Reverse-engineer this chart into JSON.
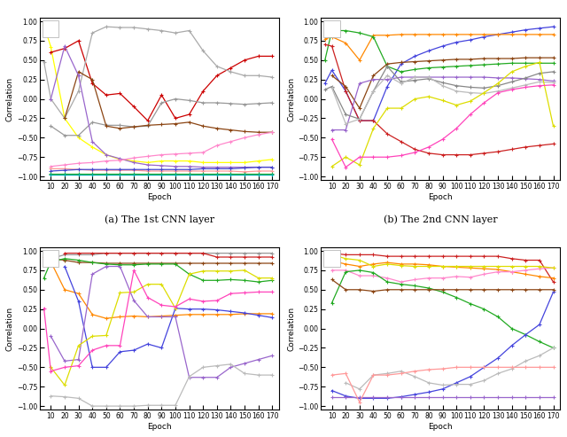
{
  "epochs": [
    5,
    10,
    20,
    30,
    40,
    50,
    60,
    70,
    80,
    90,
    100,
    110,
    120,
    130,
    140,
    150,
    160,
    170
  ],
  "subplot_titles": [
    "(a) The 1st CNN layer",
    "(b) The 2nd CNN layer",
    "(c) The 1st FC layer",
    "(d) The 2nd FC layer"
  ],
  "subplot_a_lines": [
    {
      "color": "#ffff00",
      "data": [
        0.95,
        0.67,
        -0.25,
        -0.5,
        -0.62,
        -0.72,
        -0.78,
        -0.8,
        -0.82,
        -0.8,
        -0.8,
        -0.8,
        -0.82,
        -0.82,
        -0.82,
        -0.82,
        -0.8,
        -0.78
      ]
    },
    {
      "color": "#cc0000",
      "data": [
        null,
        0.6,
        0.65,
        0.75,
        0.2,
        0.05,
        0.07,
        -0.1,
        -0.28,
        0.05,
        -0.25,
        -0.2,
        0.1,
        0.3,
        0.4,
        0.5,
        0.55,
        0.55
      ]
    },
    {
      "color": "#aaaaaa",
      "data": [
        0.48,
        0.0,
        -0.25,
        0.1,
        0.85,
        0.93,
        0.92,
        0.92,
        0.9,
        0.88,
        0.85,
        0.88,
        0.62,
        0.42,
        0.35,
        0.3,
        0.3,
        0.28
      ]
    },
    {
      "color": "#999999",
      "data": [
        null,
        -0.35,
        -0.47,
        -0.47,
        -0.3,
        -0.34,
        -0.34,
        -0.36,
        -0.35,
        -0.05,
        0.0,
        -0.02,
        -0.05,
        -0.05,
        -0.06,
        -0.07,
        -0.06,
        -0.05
      ]
    },
    {
      "color": "#8B4513",
      "data": [
        null,
        null,
        -0.25,
        0.35,
        0.25,
        -0.35,
        -0.38,
        -0.36,
        -0.34,
        -0.33,
        -0.32,
        -0.3,
        -0.35,
        -0.38,
        -0.4,
        -0.42,
        -0.43,
        -0.43
      ]
    },
    {
      "color": "#9966cc",
      "data": [
        null,
        0.0,
        0.68,
        0.3,
        -0.55,
        -0.72,
        -0.77,
        -0.82,
        -0.85,
        -0.86,
        -0.87,
        -0.87,
        -0.88,
        -0.88,
        -0.88,
        -0.88,
        -0.88,
        -0.88
      ]
    },
    {
      "color": "#ff88cc",
      "data": [
        null,
        -0.87,
        -0.85,
        -0.83,
        -0.82,
        -0.8,
        -0.79,
        -0.76,
        -0.74,
        -0.72,
        -0.71,
        -0.7,
        -0.69,
        -0.6,
        -0.55,
        -0.5,
        -0.46,
        -0.43
      ]
    },
    {
      "color": "#ff9999",
      "data": [
        null,
        -0.9,
        -0.9,
        -0.91,
        -0.92,
        -0.92,
        -0.92,
        -0.92,
        -0.93,
        -0.93,
        -0.93,
        -0.93,
        -0.93,
        -0.93,
        -0.93,
        -0.94,
        -0.93,
        -0.93
      ]
    },
    {
      "color": "#4444cc",
      "data": [
        null,
        -0.93,
        -0.92,
        -0.91,
        -0.91,
        -0.91,
        -0.91,
        -0.91,
        -0.91,
        -0.91,
        -0.91,
        -0.91,
        -0.9,
        -0.9,
        -0.9,
        -0.89,
        -0.88,
        -0.88
      ]
    },
    {
      "color": "#22aa22",
      "data": [
        null,
        -0.97,
        -0.97,
        -0.97,
        -0.97,
        -0.97,
        -0.97,
        -0.97,
        -0.97,
        -0.97,
        -0.97,
        -0.97,
        -0.97,
        -0.97,
        -0.97,
        -0.97,
        -0.97,
        -0.97
      ]
    },
    {
      "color": "#00aaaa",
      "data": [
        null,
        -0.98,
        -0.98,
        -0.98,
        -0.98,
        -0.98,
        -0.98,
        -0.98,
        -0.98,
        -0.98,
        -0.98,
        -0.98,
        -0.98,
        -0.98,
        -0.98,
        -0.98,
        -0.98,
        -0.98
      ]
    }
  ],
  "subplot_b_lines": [
    {
      "color": "#4444dd",
      "data": [
        0.2,
        0.37,
        0.1,
        -0.28,
        -0.28,
        0.16,
        0.45,
        0.55,
        0.62,
        0.68,
        0.73,
        0.76,
        0.8,
        0.83,
        0.86,
        0.89,
        0.91,
        0.93
      ]
    },
    {
      "color": "#ff8800",
      "data": [
        0.77,
        0.8,
        0.72,
        0.5,
        0.82,
        0.82,
        0.83,
        0.83,
        0.83,
        0.83,
        0.83,
        0.83,
        0.83,
        0.83,
        0.83,
        0.83,
        0.83,
        0.83
      ]
    },
    {
      "color": "#22aa22",
      "data": [
        0.5,
        0.88,
        0.88,
        0.85,
        0.8,
        0.42,
        0.35,
        0.38,
        0.4,
        0.41,
        0.42,
        0.43,
        0.44,
        0.45,
        0.46,
        0.46,
        0.46,
        0.46
      ]
    },
    {
      "color": "#cc2222",
      "data": [
        0.7,
        0.68,
        0.1,
        -0.28,
        -0.28,
        -0.45,
        -0.55,
        -0.65,
        -0.7,
        -0.72,
        -0.72,
        -0.72,
        -0.7,
        -0.68,
        -0.65,
        -0.62,
        -0.6,
        -0.58
      ]
    },
    {
      "color": "#8B4513",
      "data": [
        null,
        0.3,
        0.16,
        -0.12,
        0.3,
        0.45,
        0.47,
        0.48,
        0.49,
        0.5,
        0.51,
        0.51,
        0.52,
        0.52,
        0.52,
        0.53,
        0.53,
        0.53
      ]
    },
    {
      "color": "#9966cc",
      "data": [
        null,
        -0.4,
        -0.4,
        0.2,
        0.25,
        0.25,
        0.28,
        0.28,
        0.28,
        0.28,
        0.28,
        0.28,
        0.28,
        0.27,
        0.27,
        0.26,
        0.25,
        0.23
      ]
    },
    {
      "color": "#888888",
      "data": [
        0.12,
        0.16,
        -0.2,
        -0.26,
        0.1,
        0.42,
        0.22,
        0.24,
        0.26,
        0.21,
        0.17,
        0.15,
        0.14,
        0.17,
        0.22,
        0.27,
        0.33,
        0.35
      ]
    },
    {
      "color": "#bbbbbb",
      "data": [
        null,
        0.14,
        -0.32,
        -0.26,
        0.1,
        0.3,
        0.2,
        0.28,
        0.28,
        0.17,
        0.1,
        0.08,
        0.07,
        0.1,
        0.14,
        0.18,
        0.22,
        0.21
      ]
    },
    {
      "color": "#dddd00",
      "data": [
        null,
        -0.87,
        -0.75,
        -0.85,
        -0.38,
        -0.12,
        -0.12,
        0.0,
        0.03,
        -0.02,
        -0.08,
        -0.03,
        0.08,
        0.2,
        0.35,
        0.42,
        0.47,
        -0.35
      ]
    },
    {
      "color": "#ff44bb",
      "data": [
        null,
        -0.52,
        -0.88,
        -0.75,
        -0.75,
        -0.75,
        -0.73,
        -0.69,
        -0.62,
        -0.52,
        -0.38,
        -0.2,
        -0.05,
        0.08,
        0.12,
        0.15,
        0.17,
        0.18
      ]
    }
  ],
  "subplot_c_lines": [
    {
      "color": "#999999",
      "data": [
        0.9,
        0.9,
        0.95,
        0.95,
        0.95,
        0.97,
        0.97,
        0.97,
        0.97,
        0.97,
        0.97,
        0.97,
        0.97,
        0.97,
        0.97,
        0.97,
        0.97,
        0.97
      ]
    },
    {
      "color": "#cc2222",
      "data": [
        null,
        null,
        0.97,
        0.97,
        0.97,
        0.97,
        0.97,
        0.97,
        0.97,
        0.97,
        0.97,
        0.97,
        0.97,
        0.92,
        0.92,
        0.92,
        0.92,
        0.92
      ]
    },
    {
      "color": "#8B4513",
      "data": [
        0.92,
        0.9,
        0.88,
        0.85,
        0.85,
        0.84,
        0.84,
        0.84,
        0.84,
        0.84,
        0.84,
        0.84,
        0.84,
        0.84,
        0.84,
        0.84,
        0.84,
        0.84
      ]
    },
    {
      "color": "#22aa22",
      "data": [
        0.65,
        0.86,
        0.9,
        0.88,
        0.85,
        0.83,
        0.82,
        0.82,
        0.83,
        0.83,
        0.83,
        0.7,
        0.62,
        0.62,
        0.63,
        0.62,
        0.6,
        0.62
      ]
    },
    {
      "color": "#ff8800",
      "data": [
        null,
        0.86,
        0.5,
        0.45,
        0.18,
        0.13,
        0.15,
        0.16,
        0.15,
        0.16,
        0.17,
        0.18,
        0.18,
        0.18,
        0.18,
        0.19,
        0.19,
        0.19
      ]
    },
    {
      "color": "#4444dd",
      "data": [
        null,
        null,
        0.8,
        0.35,
        -0.5,
        -0.5,
        -0.3,
        -0.28,
        -0.2,
        -0.25,
        0.26,
        0.25,
        0.25,
        0.24,
        0.22,
        0.2,
        0.17,
        0.14
      ]
    },
    {
      "color": "#9966cc",
      "data": [
        null,
        -0.1,
        -0.42,
        -0.4,
        0.7,
        0.8,
        0.8,
        0.36,
        0.15,
        0.15,
        0.15,
        -0.63,
        -0.63,
        -0.63,
        -0.5,
        -0.45,
        -0.4,
        -0.35
      ]
    },
    {
      "color": "#dddd00",
      "data": [
        null,
        -0.5,
        -0.73,
        -0.22,
        -0.1,
        -0.09,
        0.46,
        0.47,
        0.57,
        0.57,
        0.26,
        0.7,
        0.74,
        0.74,
        0.74,
        0.75,
        0.65,
        0.65
      ]
    },
    {
      "color": "#ff44bb",
      "data": [
        0.26,
        -0.55,
        -0.5,
        -0.48,
        -0.28,
        -0.22,
        -0.22,
        0.75,
        0.4,
        0.3,
        0.28,
        0.38,
        0.35,
        0.36,
        0.45,
        0.46,
        0.47,
        0.47
      ]
    },
    {
      "color": "#bbbbbb",
      "data": [
        null,
        -0.87,
        -0.88,
        -0.9,
        -1.0,
        -1.0,
        -1.0,
        -1.0,
        -0.99,
        -0.99,
        -0.99,
        -0.62,
        -0.5,
        -0.48,
        -0.46,
        -0.58,
        -0.6,
        -0.6
      ]
    }
  ],
  "subplot_d_lines": [
    {
      "color": "#cc2222",
      "data": [
        null,
        0.97,
        0.95,
        0.95,
        0.95,
        0.93,
        0.93,
        0.93,
        0.93,
        0.93,
        0.93,
        0.93,
        0.93,
        0.93,
        0.9,
        0.88,
        0.88,
        0.6
      ]
    },
    {
      "color": "#ff8800",
      "data": [
        null,
        0.87,
        0.83,
        0.8,
        0.83,
        0.85,
        0.83,
        0.83,
        0.82,
        0.8,
        0.79,
        0.78,
        0.77,
        0.76,
        0.73,
        0.7,
        0.67,
        0.65
      ]
    },
    {
      "color": "#ff88cc",
      "data": [
        null,
        0.75,
        0.75,
        0.68,
        0.68,
        0.65,
        0.6,
        0.63,
        0.65,
        0.65,
        0.67,
        0.66,
        0.7,
        0.73,
        0.73,
        0.75,
        0.77,
        0.78
      ]
    },
    {
      "color": "#dddd00",
      "data": [
        null,
        0.95,
        0.9,
        0.88,
        0.8,
        0.83,
        0.81,
        0.8,
        0.8,
        0.8,
        0.8,
        0.8,
        0.8,
        0.8,
        0.8,
        0.8,
        0.8,
        0.78
      ]
    },
    {
      "color": "#22aa22",
      "data": [
        null,
        0.33,
        0.73,
        0.75,
        0.72,
        0.6,
        0.57,
        0.55,
        0.52,
        0.47,
        0.4,
        0.32,
        0.25,
        0.15,
        0.0,
        -0.08,
        -0.17,
        -0.25
      ]
    },
    {
      "color": "#4444dd",
      "data": [
        null,
        -0.8,
        -0.87,
        -0.9,
        -0.9,
        -0.9,
        -0.88,
        -0.85,
        -0.82,
        -0.78,
        -0.7,
        -0.62,
        -0.5,
        -0.38,
        -0.22,
        -0.08,
        0.05,
        0.47
      ]
    },
    {
      "color": "#bbbbbb",
      "data": [
        null,
        null,
        -0.7,
        -0.78,
        -0.6,
        -0.58,
        -0.55,
        -0.62,
        -0.7,
        -0.73,
        -0.72,
        -0.72,
        -0.67,
        -0.58,
        -0.52,
        -0.42,
        -0.35,
        -0.25
      ]
    },
    {
      "color": "#8B4513",
      "data": [
        null,
        0.63,
        0.5,
        0.5,
        0.48,
        0.5,
        0.5,
        0.5,
        0.5,
        0.5,
        0.5,
        0.5,
        0.5,
        0.5,
        0.5,
        0.5,
        0.5,
        0.5
      ]
    },
    {
      "color": "#9966cc",
      "data": [
        null,
        -0.88,
        -0.88,
        -0.88,
        -0.88,
        -0.88,
        -0.88,
        -0.88,
        -0.88,
        -0.88,
        -0.88,
        -0.88,
        -0.88,
        -0.88,
        -0.88,
        -0.88,
        -0.88,
        -0.88
      ]
    },
    {
      "color": "#888888",
      "data": [
        null,
        null,
        null,
        null,
        null,
        null,
        null,
        null,
        null,
        null,
        null,
        null,
        null,
        null,
        null,
        null,
        null,
        null
      ]
    },
    {
      "color": "#ff9999",
      "data": [
        null,
        -0.6,
        -0.58,
        -0.95,
        -0.6,
        -0.6,
        -0.58,
        -0.55,
        -0.53,
        -0.52,
        -0.5,
        -0.5,
        -0.5,
        -0.5,
        -0.5,
        -0.5,
        -0.5,
        -0.5
      ]
    }
  ],
  "ylim": [
    -1.05,
    1.05
  ],
  "xlim": [
    2,
    175
  ],
  "xticks": [
    10,
    20,
    30,
    40,
    50,
    60,
    70,
    80,
    90,
    100,
    110,
    120,
    130,
    140,
    150,
    160,
    170
  ],
  "yticks": [
    -1.0,
    -0.75,
    -0.5,
    -0.25,
    0.0,
    0.25,
    0.5,
    0.75,
    1.0
  ],
  "xlabel": "Epoch",
  "ylabel": "Correlation"
}
